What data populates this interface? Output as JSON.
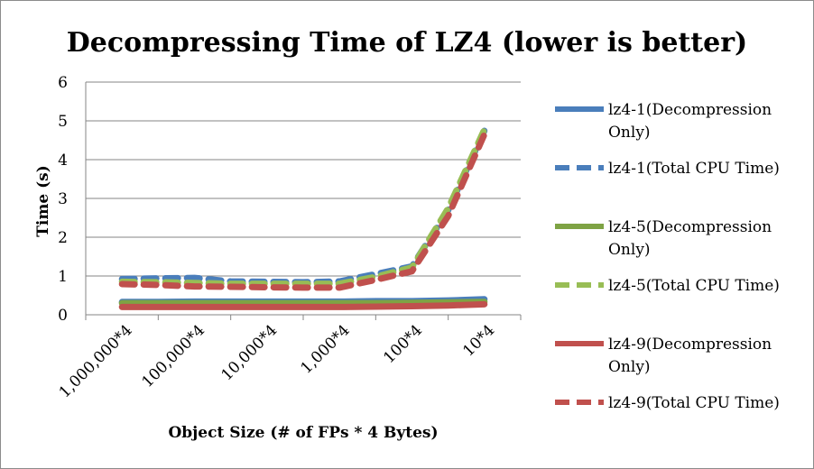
{
  "chart_data": {
    "type": "line",
    "title": "Decompressing Time of LZ4 (lower is better)",
    "xlabel": "Object Size (# of FPs * 4 Bytes)",
    "ylabel": "Time (s)",
    "categories": [
      "1,000,000*4",
      "100,000*4",
      "10,000*4",
      "1,000*4",
      "100*4",
      "10*4"
    ],
    "x": [
      0,
      0.5,
      1,
      1.5,
      2,
      2.5,
      3,
      3.5,
      4,
      4.5,
      5
    ],
    "ylim": [
      0,
      6
    ],
    "yticks": [
      "0",
      "1",
      "2",
      "3",
      "4",
      "5",
      "6"
    ],
    "grid": true,
    "legend_position": "right",
    "series": [
      {
        "name": "lz4-1(Decompression Only)",
        "color": "#4a7ebb",
        "dashed": false,
        "values": [
          0.33,
          0.33,
          0.34,
          0.34,
          0.34,
          0.34,
          0.34,
          0.35,
          0.35,
          0.37,
          0.4
        ]
      },
      {
        "name": "lz4-1(Total CPU Time)",
        "color": "#4a7ebb",
        "dashed": true,
        "values": [
          0.92,
          0.94,
          0.95,
          0.86,
          0.85,
          0.84,
          0.86,
          1.05,
          1.25,
          2.7,
          4.75
        ]
      },
      {
        "name": "lz4-5(Decompression Only)",
        "color": "#7ea344",
        "dashed": false,
        "values": [
          0.3,
          0.3,
          0.3,
          0.3,
          0.3,
          0.3,
          0.3,
          0.3,
          0.31,
          0.32,
          0.33
        ]
      },
      {
        "name": "lz4-5(Total CPU Time)",
        "color": "#98bd55",
        "dashed": true,
        "values": [
          0.85,
          0.84,
          0.82,
          0.8,
          0.8,
          0.8,
          0.8,
          0.98,
          1.22,
          2.75,
          4.78
        ]
      },
      {
        "name": "lz4-9(Decompression Only)",
        "color": "#c0504d",
        "dashed": false,
        "values": [
          0.2,
          0.2,
          0.2,
          0.2,
          0.2,
          0.2,
          0.2,
          0.21,
          0.22,
          0.24,
          0.27
        ]
      },
      {
        "name": "lz4-9(Total CPU Time)",
        "color": "#c0504d",
        "dashed": true,
        "values": [
          0.79,
          0.77,
          0.73,
          0.72,
          0.71,
          0.7,
          0.7,
          0.9,
          1.12,
          2.55,
          4.65
        ]
      }
    ]
  }
}
